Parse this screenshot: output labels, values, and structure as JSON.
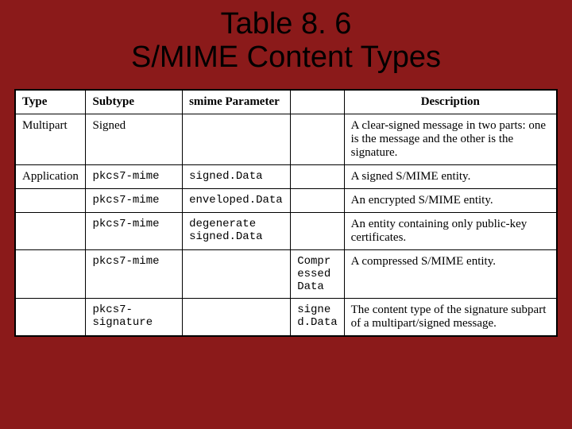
{
  "colors": {
    "background": "#8b1a1a",
    "table_bg": "#ffffff",
    "border": "#000000",
    "text": "#000000"
  },
  "typography": {
    "title_font": "Arial",
    "title_fontsize_pt": 38,
    "body_font": "Times New Roman",
    "body_fontsize_pt": 15,
    "mono_font": "Courier New",
    "mono_fontsize_pt": 14
  },
  "title": {
    "line1": "Table 8. 6",
    "line2": "S/MIME Content Types"
  },
  "table": {
    "type": "table",
    "columns": [
      {
        "label": "Type",
        "width_pct": 13,
        "align": "left"
      },
      {
        "label": "Subtype",
        "width_pct": 18,
        "align": "left"
      },
      {
        "label": "smime Parameter",
        "width_pct": 20,
        "align": "left"
      },
      {
        "label": "",
        "width_pct": 9,
        "align": "left"
      },
      {
        "label": "Description",
        "width_pct": 40,
        "align": "center"
      }
    ],
    "rows": [
      {
        "type": "Multipart",
        "subtype": "Signed",
        "smime_a": "",
        "smime_b": "",
        "description": "A clear-signed message in two parts: one is the message and the other is the signature."
      },
      {
        "type": "Application",
        "subtype": "pkcs7-mime",
        "smime_a": "signed.Data",
        "smime_b": "",
        "description": "A signed S/MIME entity."
      },
      {
        "type": "",
        "subtype": "pkcs7-mime",
        "smime_a": "enveloped.Data",
        "smime_b": "",
        "description": "An encrypted S/MIME entity."
      },
      {
        "type": "",
        "subtype": "pkcs7-mime",
        "smime_a": "degenerate signed.Data",
        "smime_b": "",
        "description": "An entity containing only public-key certificates."
      },
      {
        "type": "",
        "subtype": "pkcs7-mime",
        "smime_a": "",
        "smime_b": "Compr essed Data",
        "description": "A compressed S/MIME entity."
      },
      {
        "type": "",
        "subtype": "pkcs7-signature",
        "smime_a": "",
        "smime_b": "signe d.Data",
        "description": "The content type of the signature subpart of a multipart/signed message."
      }
    ]
  }
}
